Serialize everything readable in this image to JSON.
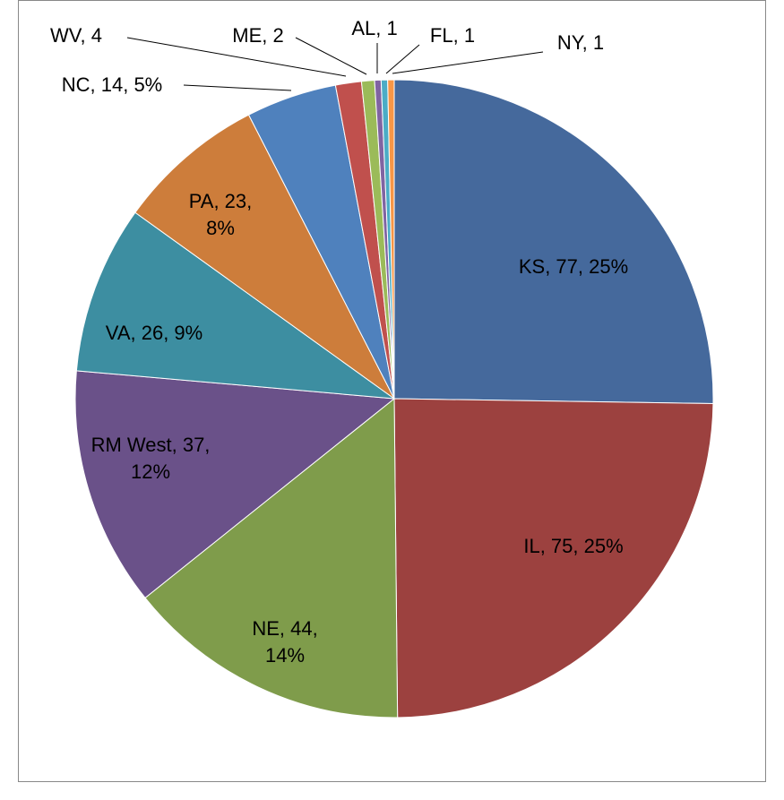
{
  "chart_data": {
    "type": "pie",
    "values": [
      77,
      75,
      44,
      37,
      26,
      23,
      14,
      4,
      2,
      1,
      1,
      1
    ],
    "value_labels": [
      "KS, 77, 25%",
      "IL, 75, 25%",
      "NE, 44, 14%",
      "RM West, 37, 12%",
      "VA, 26, 9%",
      "PA, 23, 8%",
      "NC, 14, 5%",
      "WV, 4",
      "ME, 2",
      "AL, 1",
      "FL, 1",
      "NY, 1"
    ],
    "colors": [
      "#45699c",
      "#9c413f",
      "#7f9c4b",
      "#6a5189",
      "#3d8ea1",
      "#cd7d3b",
      "#4f81bd",
      "#c0504d",
      "#9bbb59",
      "#8064a2",
      "#4bacc6",
      "#f79646"
    ]
  }
}
